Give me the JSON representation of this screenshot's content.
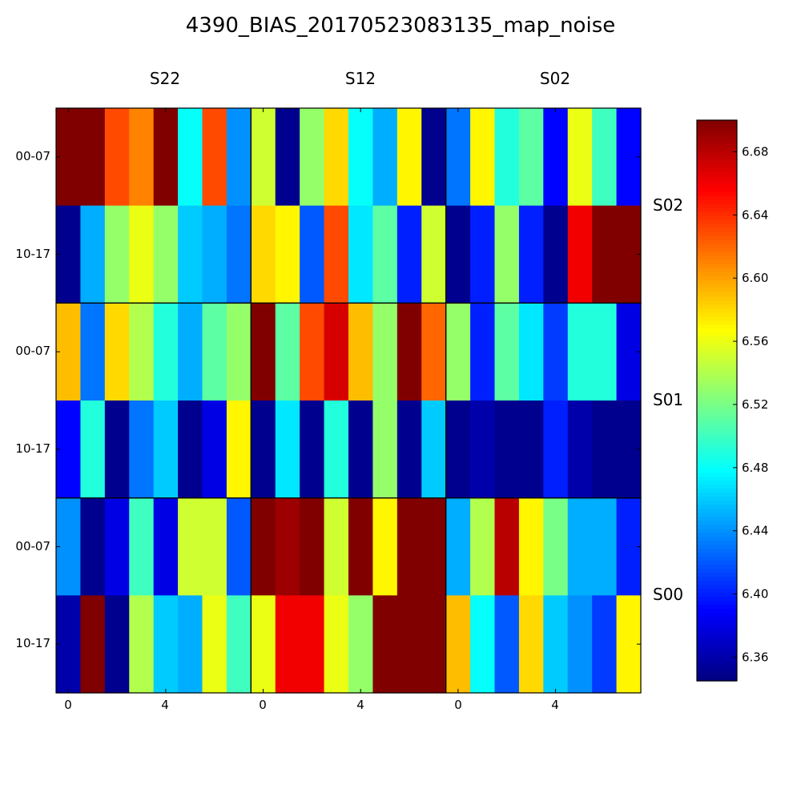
{
  "chart_data": {
    "type": "heatmap",
    "title": "4390_BIAS_20170523083135_map_noise",
    "colormap": "jet",
    "vmin": 6.345,
    "vmax": 6.7,
    "column_groups": [
      "S22",
      "S12",
      "S02"
    ],
    "row_groups": [
      "S02",
      "S01",
      "S00"
    ],
    "row_labels": [
      "00-07",
      "10-17"
    ],
    "x_ticks": [
      "0",
      "4"
    ],
    "colorbar_ticks": [
      "6.36",
      "6.40",
      "6.44",
      "6.48",
      "6.52",
      "6.56",
      "6.60",
      "6.64",
      "6.68"
    ],
    "grid_rows": [
      [
        6.7,
        6.7,
        6.63,
        6.61,
        6.7,
        6.48,
        6.63,
        6.44,
        6.55,
        6.35,
        6.53,
        6.58,
        6.48,
        6.45,
        6.57,
        6.35,
        6.43,
        6.57,
        6.49,
        6.51,
        6.39,
        6.56,
        6.5,
        6.39
      ],
      [
        6.35,
        6.45,
        6.53,
        6.56,
        6.53,
        6.46,
        6.45,
        6.43,
        6.58,
        6.57,
        6.42,
        6.63,
        6.47,
        6.51,
        6.4,
        6.55,
        6.35,
        6.4,
        6.53,
        6.4,
        6.35,
        6.66,
        6.7,
        6.7
      ],
      [
        6.59,
        6.43,
        6.58,
        6.54,
        6.49,
        6.45,
        6.51,
        6.53,
        6.7,
        6.51,
        6.63,
        6.67,
        6.59,
        6.53,
        6.7,
        6.62,
        6.53,
        6.4,
        6.51,
        6.47,
        6.41,
        6.49,
        6.49,
        6.38
      ],
      [
        6.39,
        6.49,
        6.35,
        6.43,
        6.46,
        6.35,
        6.38,
        6.57,
        6.35,
        6.47,
        6.35,
        6.49,
        6.35,
        6.53,
        6.35,
        6.46,
        6.35,
        6.36,
        6.35,
        6.35,
        6.4,
        6.36,
        6.35,
        6.35
      ],
      [
        6.44,
        6.35,
        6.38,
        6.5,
        6.38,
        6.55,
        6.55,
        6.42,
        6.7,
        6.69,
        6.7,
        6.55,
        6.7,
        6.57,
        6.7,
        6.7,
        6.45,
        6.54,
        6.68,
        6.57,
        6.52,
        6.45,
        6.45,
        6.4
      ],
      [
        6.36,
        6.7,
        6.35,
        6.54,
        6.46,
        6.45,
        6.56,
        6.5,
        6.56,
        6.66,
        6.66,
        6.56,
        6.53,
        6.7,
        6.7,
        6.7,
        6.59,
        6.48,
        6.42,
        6.58,
        6.46,
        6.44,
        6.41,
        6.57
      ]
    ]
  }
}
